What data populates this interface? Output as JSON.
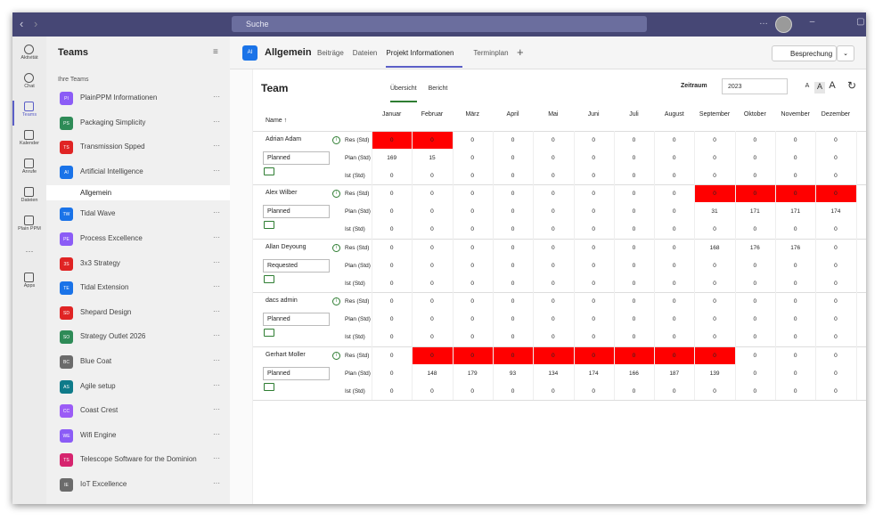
{
  "window": {
    "search": "Suche"
  },
  "rail": [
    {
      "label": "Aktivität"
    },
    {
      "label": "Chat"
    },
    {
      "label": "Teams"
    },
    {
      "label": "Kalender"
    },
    {
      "label": "Anrufe"
    },
    {
      "label": "Dateien"
    },
    {
      "label": "Plain PPM"
    },
    {
      "label": "Apps"
    }
  ],
  "rail_active": 2,
  "teams_panel": {
    "title": "Teams",
    "section": "Ihre Teams",
    "teams": [
      {
        "initials": "PI",
        "name": "PlainPPM Informationen",
        "color": "#8b5cf6"
      },
      {
        "initials": "PS",
        "name": "Packaging Simplicity",
        "color": "#2e8b57"
      },
      {
        "initials": "TS",
        "name": "Transmission Spped",
        "color": "#e02424"
      },
      {
        "initials": "AI",
        "name": "Artificial Intelligence",
        "color": "#1a73e8",
        "channels": [
          "Allgemein"
        ]
      },
      {
        "initials": "TW",
        "name": "Tidal Wave",
        "color": "#1a73e8"
      },
      {
        "initials": "PE",
        "name": "Process Excellence",
        "color": "#8b5cf6"
      },
      {
        "initials": "3S",
        "name": "3x3 Strategy",
        "color": "#e02424"
      },
      {
        "initials": "TE",
        "name": "Tidal Extension",
        "color": "#1a73e8"
      },
      {
        "initials": "SD",
        "name": "Shepard Design",
        "color": "#e02424"
      },
      {
        "initials": "SO",
        "name": "Strategy Outlet 2026",
        "color": "#2e8b57"
      },
      {
        "initials": "BC",
        "name": "Blue Coat",
        "color": "#6b6b6b"
      },
      {
        "initials": "AS",
        "name": "Agile setup",
        "color": "#0f7b8a"
      },
      {
        "initials": "CC",
        "name": "Coast Crest",
        "color": "#9b5cf6"
      },
      {
        "initials": "WE",
        "name": "Wifi Engine",
        "color": "#8b5cf6"
      },
      {
        "initials": "TS",
        "name": "Telescope Software for the Dominion",
        "color": "#d6246e"
      },
      {
        "initials": "IE",
        "name": "IoT Excellence",
        "color": "#6b6b6b"
      }
    ]
  },
  "header": {
    "initials": "AI",
    "title": "Allgemein",
    "tabs": [
      "Beiträge",
      "Dateien",
      "Projekt Informationen",
      "Terminplan"
    ],
    "active_tab": 2,
    "meeting": "Besprechung"
  },
  "content": {
    "title": "Team",
    "tabs": [
      "Übersicht",
      "Bericht"
    ],
    "active_tab": 0,
    "period_label": "Zeitraum",
    "year": "2023",
    "font_sizes": [
      "A",
      "A",
      "A"
    ]
  },
  "table": {
    "name_header": "Name ↑",
    "months": [
      "Januar",
      "Februar",
      "März",
      "April",
      "Mai",
      "Juni",
      "Juli",
      "August",
      "September",
      "Oktober",
      "November",
      "Dezember"
    ],
    "row_labels": [
      "Res (Std)",
      "Plan (Std)",
      "Ist (Std)"
    ],
    "people": [
      {
        "name": "Adrian Adam",
        "status": "Planned",
        "highlight": [
          0,
          1
        ],
        "rows": [
          [
            0,
            0,
            0,
            0,
            0,
            0,
            0,
            0,
            0,
            0,
            0,
            0
          ],
          [
            169,
            15,
            0,
            0,
            0,
            0,
            0,
            0,
            0,
            0,
            0,
            0
          ],
          [
            0,
            0,
            0,
            0,
            0,
            0,
            0,
            0,
            0,
            0,
            0,
            0
          ]
        ]
      },
      {
        "name": "Alex Wilber",
        "status": "Planned",
        "highlight": [
          8,
          9,
          10,
          11
        ],
        "rows": [
          [
            0,
            0,
            0,
            0,
            0,
            0,
            0,
            0,
            0,
            0,
            0,
            0
          ],
          [
            0,
            0,
            0,
            0,
            0,
            0,
            0,
            0,
            31,
            171,
            171,
            174
          ],
          [
            0,
            0,
            0,
            0,
            0,
            0,
            0,
            0,
            0,
            0,
            0,
            0
          ]
        ]
      },
      {
        "name": "Allan Deyoung",
        "status": "Requested",
        "highlight": [],
        "rows": [
          [
            0,
            0,
            0,
            0,
            0,
            0,
            0,
            0,
            168,
            176,
            176,
            0
          ],
          [
            0,
            0,
            0,
            0,
            0,
            0,
            0,
            0,
            0,
            0,
            0,
            0
          ],
          [
            0,
            0,
            0,
            0,
            0,
            0,
            0,
            0,
            0,
            0,
            0,
            0
          ]
        ]
      },
      {
        "name": "dacs admin",
        "status": "Planned",
        "highlight": [],
        "rows": [
          [
            0,
            0,
            0,
            0,
            0,
            0,
            0,
            0,
            0,
            0,
            0,
            0
          ],
          [
            0,
            0,
            0,
            0,
            0,
            0,
            0,
            0,
            0,
            0,
            0,
            0
          ],
          [
            0,
            0,
            0,
            0,
            0,
            0,
            0,
            0,
            0,
            0,
            0,
            0
          ]
        ]
      },
      {
        "name": "Gerhart Moller",
        "status": "Planned",
        "highlight": [
          1,
          2,
          3,
          4,
          5,
          6,
          7,
          8
        ],
        "rows": [
          [
            0,
            0,
            0,
            0,
            0,
            0,
            0,
            0,
            0,
            0,
            0,
            0
          ],
          [
            0,
            148,
            179,
            93,
            134,
            174,
            166,
            187,
            139,
            0,
            0,
            0
          ],
          [
            0,
            0,
            0,
            0,
            0,
            0,
            0,
            0,
            0,
            0,
            0,
            0
          ]
        ]
      }
    ]
  }
}
